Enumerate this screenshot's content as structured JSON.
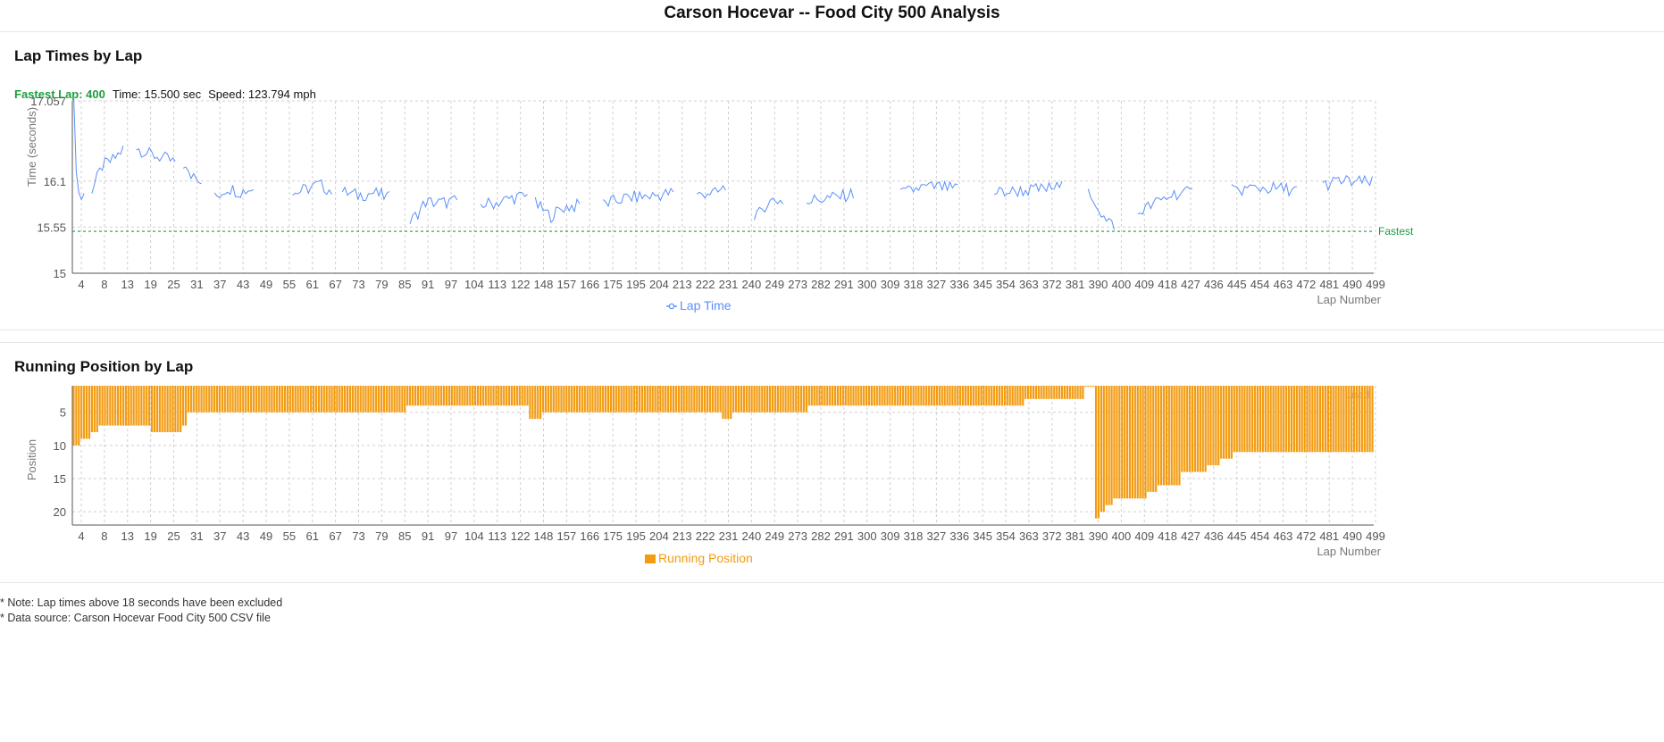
{
  "page_title": "Carson Hocevar -- Food City 500 Analysis",
  "lap_panel": {
    "title": "Lap Times by Lap",
    "fastest_label": "Fastest Lap: 400",
    "time_text": "Time: 15.500 sec",
    "speed_text": "Speed: 123.794 mph",
    "legend": "Lap Time",
    "ref_label": "Fastest"
  },
  "position_panel": {
    "title": "Running Position by Lap",
    "legend": "Running Position",
    "lead_label": "Lead"
  },
  "notes": [
    "* Note: Lap times above 18 seconds have been excluded",
    "* Data source: Carson Hocevar Food City 500 CSV file"
  ],
  "colors": {
    "line": "#5b8ff9",
    "bar": "#f39c12",
    "fastest": "#1a9e3f",
    "grid": "#d0d0d0"
  },
  "chart_data": [
    {
      "type": "line",
      "title": "Lap Times by Lap",
      "xlabel": "Lap Number",
      "ylabel": "Time (seconds)",
      "ylim": [
        15,
        17.057
      ],
      "y_ticks": [
        15,
        15.55,
        16.1,
        17.057
      ],
      "x_tick_labels": [
        "4",
        "8",
        "13",
        "19",
        "25",
        "31",
        "37",
        "43",
        "49",
        "55",
        "61",
        "67",
        "73",
        "79",
        "85",
        "91",
        "97",
        "104",
        "113",
        "122",
        "148",
        "157",
        "166",
        "175",
        "195",
        "204",
        "213",
        "222",
        "231",
        "240",
        "249",
        "273",
        "282",
        "291",
        "300",
        "309",
        "318",
        "327",
        "336",
        "345",
        "354",
        "363",
        "372",
        "381",
        "390",
        "400",
        "409",
        "418",
        "427",
        "436",
        "445",
        "454",
        "463",
        "472",
        "481",
        "490",
        "499"
      ],
      "grid": true,
      "legend": "bottom-center",
      "fastest_reference": 15.5,
      "series": [
        {
          "name": "Lap Time",
          "segment_laps": [
            [
              1,
              5
            ],
            [
              8,
              20
            ],
            [
              25,
              40
            ],
            [
              43,
              50
            ],
            [
              55,
              70
            ],
            [
              85,
              100
            ],
            [
              104,
              122
            ],
            [
              130,
              148
            ],
            [
              157,
              175
            ],
            [
              178,
              195
            ],
            [
              204,
              231
            ],
            [
              240,
              251
            ],
            [
              262,
              273
            ],
            [
              282,
              300
            ],
            [
              318,
              340
            ],
            [
              354,
              380
            ],
            [
              390,
              400
            ],
            [
              409,
              430
            ],
            [
              445,
              470
            ],
            [
              480,
              499
            ]
          ],
          "segment_values": [
            [
              17.05,
              16.02,
              15.88,
              15.96
            ],
            [
              15.98,
              16.28,
              16.35,
              16.48
            ],
            [
              16.5,
              16.42,
              16.38,
              16.32
            ],
            [
              16.3,
              16.15,
              16.2,
              16.1
            ],
            [
              15.9,
              16.02,
              15.97,
              16.02
            ],
            [
              15.95,
              16.0,
              16.06,
              15.98
            ],
            [
              15.97,
              15.93,
              15.96,
              15.9
            ],
            [
              15.6,
              15.85,
              15.84,
              15.86
            ],
            [
              15.82,
              15.84,
              15.9,
              15.92
            ],
            [
              15.83,
              15.68,
              15.79,
              15.81
            ],
            [
              15.82,
              15.9,
              15.92,
              15.96
            ],
            [
              15.92,
              15.97,
              15.95,
              16.02
            ],
            [
              15.62,
              15.8,
              15.88,
              15.86
            ],
            [
              15.86,
              15.89,
              15.91,
              15.95
            ],
            [
              15.94,
              16.02,
              16.03,
              16.0
            ],
            [
              15.96,
              15.98,
              16.0,
              16.03
            ],
            [
              16.0,
              15.82,
              15.62,
              15.58
            ],
            [
              15.72,
              15.84,
              15.95,
              15.96
            ],
            [
              15.98,
              16.02,
              16.01,
              16.0
            ],
            [
              16.05,
              16.1,
              16.09,
              16.08
            ]
          ]
        }
      ]
    },
    {
      "type": "bar",
      "title": "Running Position by Lap",
      "xlabel": "Lap Number",
      "ylabel": "Position",
      "ylim": [
        1,
        22
      ],
      "y_ticks": [
        5,
        10,
        15,
        20
      ],
      "x_tick_labels": [
        "4",
        "8",
        "13",
        "19",
        "25",
        "31",
        "37",
        "43",
        "49",
        "55",
        "61",
        "67",
        "73",
        "79",
        "85",
        "91",
        "97",
        "104",
        "113",
        "122",
        "148",
        "157",
        "166",
        "175",
        "195",
        "204",
        "213",
        "222",
        "231",
        "240",
        "249",
        "273",
        "282",
        "291",
        "300",
        "309",
        "318",
        "327",
        "336",
        "345",
        "354",
        "363",
        "372",
        "381",
        "390",
        "400",
        "409",
        "418",
        "427",
        "436",
        "445",
        "454",
        "463",
        "472",
        "481",
        "490",
        "499"
      ],
      "grid": true,
      "legend": "bottom-center",
      "series": [
        {
          "name": "Running Position",
          "lap_ranges": [
            [
              1,
              3
            ],
            [
              4,
              7
            ],
            [
              8,
              10
            ],
            [
              11,
              14
            ],
            [
              15,
              30
            ],
            [
              31,
              42
            ],
            [
              43,
              44
            ],
            [
              45,
              120
            ],
            [
              121,
              128
            ],
            [
              129,
              130
            ],
            [
              131,
              175
            ],
            [
              176,
              180
            ],
            [
              181,
              190
            ],
            [
              191,
              249
            ],
            [
              250,
              253
            ],
            [
              254,
              282
            ],
            [
              283,
              365
            ],
            [
              366,
              388
            ],
            [
              389,
              392
            ],
            [
              393,
              394
            ],
            [
              395,
              396
            ],
            [
              397,
              399
            ],
            [
              400,
              405
            ],
            [
              406,
              412
            ],
            [
              413,
              416
            ],
            [
              417,
              425
            ],
            [
              426,
              435
            ],
            [
              436,
              440
            ],
            [
              441,
              445
            ],
            [
              446,
              499
            ]
          ],
          "positions": [
            10,
            9,
            8,
            7,
            7,
            8,
            7,
            5,
            5,
            4,
            4,
            6,
            5,
            5,
            6,
            5,
            4,
            3,
            1,
            21,
            20,
            19,
            18,
            18,
            17,
            16,
            14,
            13,
            12,
            11
          ]
        }
      ]
    }
  ]
}
